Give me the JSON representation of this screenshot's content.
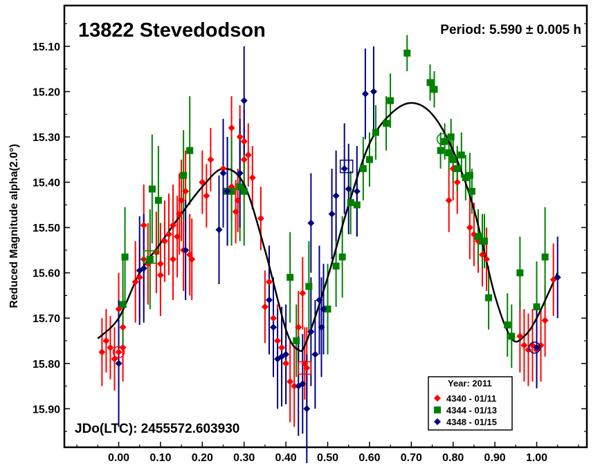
{
  "chart_data": {
    "type": "scatter",
    "title": "13822 Stevedodson",
    "period_label": "Period: 5.590 ± 0.005 h",
    "epoch_label": "JDo(LTC): 2455572.603930",
    "xlabel": "",
    "ylabel": "Reduced Magnitude alpha(2.0°)",
    "xlim": [
      -0.13,
      1.12
    ],
    "ylim": [
      15.01,
      15.985
    ],
    "y_inverted": true,
    "x_ticks": [
      "0.00",
      "0.10",
      "0.20",
      "0.30",
      "0.40",
      "0.50",
      "0.60",
      "0.70",
      "0.80",
      "0.90",
      "1.00"
    ],
    "y_ticks": [
      "15.10",
      "15.20",
      "15.30",
      "15.40",
      "15.50",
      "15.60",
      "15.70",
      "15.80",
      "15.90"
    ],
    "grid": false,
    "legend": {
      "placement": "bottom-right",
      "title": "Year: 2011",
      "entries": [
        "4340 - 01/11",
        "4344 - 01/13",
        "4348 - 01/15"
      ]
    },
    "colors": {
      "red": "#ff0000",
      "green": "#008000",
      "blue": "#000080",
      "curve": "#000000"
    },
    "series": [
      {
        "name": "4340 - 01/11",
        "color": "#ff0000",
        "marker": "diamond",
        "points": [
          [
            -0.04,
            15.775,
            0.075
          ],
          [
            -0.03,
            15.75,
            0.07
          ],
          [
            -0.02,
            15.765,
            0.07
          ],
          [
            -0.01,
            15.79,
            0.07
          ],
          [
            0.0,
            15.775,
            0.08
          ],
          [
            0.01,
            15.765,
            0.075
          ],
          [
            0.0,
            15.68,
            0.08
          ],
          [
            0.01,
            15.72,
            0.08
          ],
          [
            0.04,
            15.62,
            0.09
          ],
          [
            0.05,
            15.61,
            0.09
          ],
          [
            0.06,
            15.57,
            0.09
          ],
          [
            0.07,
            15.58,
            0.09
          ],
          [
            0.06,
            15.495,
            0.09
          ],
          [
            0.09,
            15.555,
            0.09
          ],
          [
            0.1,
            15.58,
            0.09
          ],
          [
            0.1,
            15.605,
            0.09
          ],
          [
            0.11,
            15.53,
            0.09
          ],
          [
            0.12,
            15.515,
            0.09
          ],
          [
            0.13,
            15.57,
            0.09
          ],
          [
            0.13,
            15.495,
            0.09
          ],
          [
            0.14,
            15.52,
            0.09
          ],
          [
            0.145,
            15.47,
            0.09
          ],
          [
            0.15,
            15.44,
            0.09
          ],
          [
            0.155,
            15.55,
            0.09
          ],
          [
            0.16,
            15.42,
            0.09
          ],
          [
            0.17,
            15.56,
            0.09
          ],
          [
            0.175,
            15.57,
            0.09
          ],
          [
            0.2,
            15.4,
            0.07
          ],
          [
            0.21,
            15.43,
            0.07
          ],
          [
            0.22,
            15.35,
            0.07
          ],
          [
            0.25,
            15.37,
            0.07
          ],
          [
            0.27,
            15.41,
            0.07
          ],
          [
            0.28,
            15.465,
            0.07
          ],
          [
            0.285,
            15.44,
            0.07
          ],
          [
            0.29,
            15.3,
            0.07
          ],
          [
            0.3,
            15.31,
            0.07
          ],
          [
            0.31,
            15.34,
            0.07
          ],
          [
            0.32,
            15.39,
            0.07
          ],
          [
            0.27,
            15.28,
            0.07
          ],
          [
            0.3,
            15.35,
            0.07
          ],
          [
            0.34,
            15.48,
            0.07
          ],
          [
            0.35,
            15.675,
            0.08
          ],
          [
            0.36,
            15.62,
            0.08
          ],
          [
            0.37,
            15.7,
            0.08
          ],
          [
            0.38,
            15.75,
            0.08
          ],
          [
            0.39,
            15.765,
            0.08
          ],
          [
            0.4,
            15.8,
            0.09
          ],
          [
            0.41,
            15.84,
            0.09
          ],
          [
            0.42,
            15.85,
            0.09
          ],
          [
            0.43,
            15.72,
            0.08
          ],
          [
            0.44,
            15.645,
            0.08
          ],
          [
            0.445,
            15.8,
            0.08
          ],
          [
            0.45,
            15.81,
            0.09
          ],
          [
            0.79,
            15.44,
            0.07
          ],
          [
            0.8,
            15.37,
            0.07
          ],
          [
            0.81,
            15.4,
            0.07
          ],
          [
            0.84,
            15.5,
            0.07
          ],
          [
            0.85,
            15.515,
            0.07
          ],
          [
            0.86,
            15.53,
            0.07
          ],
          [
            0.87,
            15.56,
            0.07
          ],
          [
            0.88,
            15.57,
            0.07
          ],
          [
            0.96,
            15.74,
            0.08
          ],
          [
            0.97,
            15.76,
            0.08
          ],
          [
            0.98,
            15.77,
            0.08
          ],
          [
            0.99,
            15.76,
            0.08
          ],
          [
            1.0,
            15.77,
            0.08
          ],
          [
            1.01,
            15.76,
            0.08
          ],
          [
            1.02,
            15.705,
            0.08
          ],
          [
            1.04,
            15.615,
            0.08
          ]
        ]
      },
      {
        "name": "4344 - 01/13",
        "color": "#008000",
        "marker": "square",
        "points": [
          [
            0.01,
            15.67,
            0.1
          ],
          [
            0.015,
            15.565,
            0.11
          ],
          [
            0.075,
            15.57,
            0.11
          ],
          [
            0.08,
            15.415,
            0.12
          ],
          [
            0.095,
            15.44,
            0.12
          ],
          [
            0.155,
            15.385,
            0.1
          ],
          [
            0.17,
            15.33,
            0.12
          ],
          [
            0.26,
            15.42,
            0.12
          ],
          [
            0.27,
            15.42,
            0.12
          ],
          [
            0.29,
            15.41,
            0.12
          ],
          [
            0.3,
            15.42,
            0.12
          ],
          [
            0.41,
            15.61,
            0.1
          ],
          [
            0.425,
            15.75,
            0.08
          ],
          [
            0.455,
            15.63,
            0.1
          ],
          [
            0.5,
            15.68,
            0.1
          ],
          [
            0.52,
            15.585,
            0.09
          ],
          [
            0.535,
            15.565,
            0.09
          ],
          [
            0.555,
            15.445,
            0.07
          ],
          [
            0.57,
            15.45,
            0.07
          ],
          [
            0.585,
            15.37,
            0.07
          ],
          [
            0.6,
            15.35,
            0.06
          ],
          [
            0.615,
            15.29,
            0.06
          ],
          [
            0.64,
            15.27,
            0.06
          ],
          [
            0.65,
            15.22,
            0.06
          ],
          [
            0.69,
            15.115,
            0.04
          ],
          [
            0.745,
            15.18,
            0.04
          ],
          [
            0.755,
            15.195,
            0.04
          ],
          [
            0.77,
            15.33,
            0.04
          ],
          [
            0.78,
            15.31,
            0.04
          ],
          [
            0.79,
            15.335,
            0.04
          ],
          [
            0.795,
            15.3,
            0.04
          ],
          [
            0.8,
            15.35,
            0.05
          ],
          [
            0.81,
            15.37,
            0.05
          ],
          [
            0.82,
            15.34,
            0.05
          ],
          [
            0.83,
            15.39,
            0.05
          ],
          [
            0.84,
            15.385,
            0.05
          ],
          [
            0.845,
            15.42,
            0.05
          ],
          [
            0.86,
            15.52,
            0.06
          ],
          [
            0.87,
            15.53,
            0.06
          ],
          [
            0.875,
            15.53,
            0.06
          ],
          [
            0.885,
            15.655,
            0.07
          ],
          [
            0.93,
            15.715,
            0.07
          ],
          [
            0.94,
            15.74,
            0.07
          ],
          [
            0.96,
            15.6,
            0.08
          ],
          [
            1.0,
            15.675,
            0.1
          ],
          [
            1.02,
            15.565,
            0.11
          ]
        ]
      },
      {
        "name": "4348 - 01/15",
        "color": "#000080",
        "marker": "diamond",
        "points": [
          [
            0.0,
            15.8,
            0.14
          ],
          [
            0.05,
            15.595,
            0.12
          ],
          [
            0.06,
            15.59,
            0.12
          ],
          [
            0.16,
            15.55,
            0.11
          ],
          [
            0.24,
            15.505,
            0.12
          ],
          [
            0.25,
            15.38,
            0.12
          ],
          [
            0.26,
            15.42,
            0.12
          ],
          [
            0.29,
            15.38,
            0.12
          ],
          [
            0.3,
            15.22,
            0.12
          ],
          [
            0.36,
            15.66,
            0.12
          ],
          [
            0.37,
            15.72,
            0.11
          ],
          [
            0.38,
            15.79,
            0.11
          ],
          [
            0.39,
            15.785,
            0.11
          ],
          [
            0.4,
            15.78,
            0.11
          ],
          [
            0.43,
            15.85,
            0.11
          ],
          [
            0.44,
            15.845,
            0.11
          ],
          [
            0.45,
            15.9,
            0.12
          ],
          [
            0.46,
            15.49,
            0.11
          ],
          [
            0.46,
            15.73,
            0.12
          ],
          [
            0.47,
            15.78,
            0.12
          ],
          [
            0.48,
            15.66,
            0.12
          ],
          [
            0.485,
            15.72,
            0.11
          ],
          [
            0.49,
            15.68,
            0.1
          ],
          [
            0.51,
            15.47,
            0.1
          ],
          [
            0.52,
            15.43,
            0.1
          ],
          [
            0.54,
            15.37,
            0.1
          ],
          [
            0.55,
            15.415,
            0.1
          ],
          [
            0.57,
            15.42,
            0.1
          ],
          [
            0.59,
            15.205,
            0.1
          ],
          [
            0.61,
            15.2,
            0.1
          ],
          [
            1.0,
            15.765,
            0.09
          ],
          [
            1.05,
            15.61,
            0.09
          ]
        ]
      }
    ],
    "fit_curve": {
      "description": "Fourier fit",
      "x": [
        -0.05,
        0.0,
        0.05,
        0.1,
        0.15,
        0.2,
        0.25,
        0.3,
        0.35,
        0.4,
        0.43,
        0.45,
        0.5,
        0.55,
        0.6,
        0.65,
        0.7,
        0.75,
        0.8,
        0.85,
        0.9,
        0.94,
        0.97,
        1.0,
        1.05
      ],
      "y": [
        15.745,
        15.7,
        15.6,
        15.535,
        15.47,
        15.41,
        15.37,
        15.405,
        15.55,
        15.725,
        15.77,
        15.75,
        15.61,
        15.45,
        15.315,
        15.25,
        15.225,
        15.25,
        15.33,
        15.46,
        15.65,
        15.745,
        15.74,
        15.7,
        15.6
      ]
    },
    "annotations": [
      {
        "shape": "circle",
        "color": "#ff0000",
        "x": 0.0,
        "y": 15.775
      },
      {
        "shape": "square",
        "color": "#008000",
        "x": 0.075,
        "y": 15.565
      },
      {
        "shape": "square",
        "color": "#ff0000",
        "x": 0.445,
        "y": 15.81
      },
      {
        "shape": "square",
        "color": "#000080",
        "x": 0.545,
        "y": 15.365
      },
      {
        "shape": "circle",
        "color": "#008000",
        "x": 0.775,
        "y": 15.305
      },
      {
        "shape": "circle",
        "color": "#000080",
        "x": 0.995,
        "y": 15.765
      }
    ]
  }
}
